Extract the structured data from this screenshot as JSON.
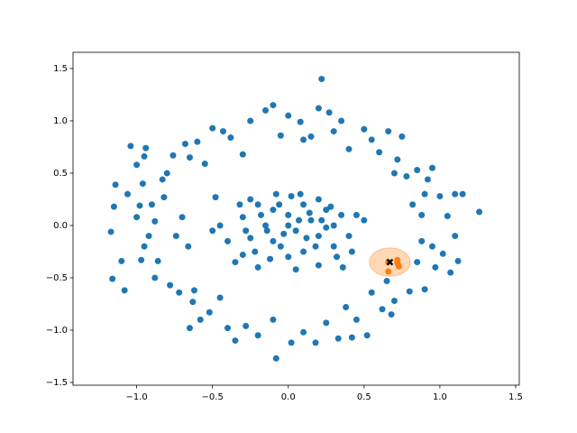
{
  "chart_data": {
    "type": "scatter",
    "xlim": [
      -1.42,
      1.524
    ],
    "ylim": [
      -1.526,
      1.655
    ],
    "xticks": [
      {
        "value": -1.0,
        "label": "−1.0"
      },
      {
        "value": -0.5,
        "label": "−0.5"
      },
      {
        "value": 0.0,
        "label": "0.0"
      },
      {
        "value": 0.5,
        "label": "0.5"
      },
      {
        "value": 1.0,
        "label": "1.0"
      },
      {
        "value": 1.5,
        "label": "1.5"
      }
    ],
    "yticks": [
      {
        "value": -1.5,
        "label": "−1.5"
      },
      {
        "value": -1.0,
        "label": "−1.0"
      },
      {
        "value": -0.5,
        "label": "−0.5"
      },
      {
        "value": 0.0,
        "label": "0.0"
      },
      {
        "value": 0.5,
        "label": "0.5"
      },
      {
        "value": 1.0,
        "label": "1.0"
      },
      {
        "value": 1.5,
        "label": "1.5"
      }
    ],
    "series": [
      {
        "color": "#1f77b4",
        "x": [
          -1.17,
          -1.14,
          -1.15,
          -1.16,
          -1.1,
          -1.08,
          -1.06,
          -1.04,
          -1.0,
          -1.0,
          -0.98,
          -0.97,
          -0.96,
          -0.95,
          -0.94,
          -0.92,
          -0.9,
          -0.88,
          -0.88,
          -0.86,
          -0.83,
          -0.82,
          -0.8,
          -0.78,
          -0.76,
          -0.74,
          -0.72,
          -0.7,
          -0.68,
          -0.66,
          -0.65,
          -0.63,
          -0.62,
          -0.6,
          -0.58,
          -0.55,
          -0.52,
          -0.5,
          -0.5,
          -0.48,
          -0.45,
          -0.43,
          -0.4,
          -0.38,
          -0.35,
          -0.3,
          -0.28,
          -0.25,
          -0.2,
          -0.15,
          -0.1,
          -0.05,
          -0.08,
          0.0,
          0.02,
          0.08,
          0.1,
          0.15,
          0.18,
          0.2,
          0.22,
          0.25,
          0.27,
          0.3,
          0.33,
          0.35,
          0.38,
          0.4,
          0.45,
          0.5,
          0.52,
          0.55,
          0.55,
          0.6,
          0.62,
          0.66,
          0.7,
          0.7,
          0.72,
          0.75,
          0.78,
          0.82,
          0.8,
          0.85,
          0.85,
          0.88,
          0.9,
          0.92,
          0.95,
          0.95,
          0.97,
          1.0,
          1.02,
          1.05,
          1.07,
          1.1,
          1.12,
          1.15,
          1.26,
          1.1,
          0.65,
          0.42,
          0.68,
          -0.95,
          -0.1,
          0.1,
          -0.65,
          0.9,
          0.88,
          -0.3,
          -0.25,
          -0.2,
          -0.15,
          -0.1,
          -0.05,
          0.0,
          0.05,
          0.1,
          0.15,
          0.2,
          0.25,
          0.3,
          -0.22,
          0.0,
          0.1,
          0.18,
          -0.12,
          0.02,
          -0.08,
          0.2,
          0.3,
          0.35,
          -0.28,
          -0.18,
          0.07,
          -0.03,
          0.12,
          -0.1,
          0.22,
          0.4,
          0.42,
          0.45,
          0.5,
          -0.32,
          -0.4,
          -0.45,
          -0.35,
          -0.2,
          0.05,
          0.2,
          0.32,
          -0.06,
          0.14,
          0.25,
          -0.25,
          0.0,
          0.08,
          0.28,
          -0.14,
          0.36,
          -0.3
        ],
        "y": [
          -0.06,
          0.39,
          0.18,
          -0.51,
          -0.34,
          -0.62,
          0.3,
          0.76,
          0.58,
          0.08,
          0.19,
          -0.33,
          0.4,
          -0.2,
          0.74,
          -0.1,
          0.2,
          0.04,
          -0.5,
          -0.34,
          0.44,
          0.27,
          0.5,
          -0.57,
          0.67,
          -0.1,
          -0.64,
          0.08,
          0.78,
          -0.2,
          0.65,
          -0.73,
          -0.62,
          0.8,
          -0.9,
          0.59,
          -0.83,
          -0.05,
          0.93,
          0.27,
          -0.69,
          0.9,
          -0.98,
          0.84,
          -1.1,
          0.68,
          -0.96,
          1.0,
          -1.05,
          1.1,
          -0.9,
          0.86,
          -1.27,
          1.05,
          -1.12,
          0.99,
          -1.02,
          0.85,
          -1.12,
          1.12,
          1.4,
          -0.93,
          1.08,
          0.9,
          -1.08,
          1.0,
          -0.78,
          0.73,
          -0.9,
          0.92,
          -1.05,
          0.82,
          -0.64,
          0.7,
          -0.8,
          0.9,
          0.5,
          -0.72,
          0.63,
          0.85,
          0.47,
          0.2,
          -0.63,
          0.53,
          -0.35,
          0.1,
          -0.61,
          0.44,
          -0.2,
          0.55,
          -0.4,
          0.28,
          -0.27,
          0.09,
          -0.45,
          0.3,
          -0.34,
          0.3,
          0.13,
          -0.1,
          -0.53,
          -1.07,
          -0.85,
          0.66,
          1.15,
          0.82,
          -0.98,
          0.3,
          -0.15,
          0.08,
          -0.12,
          0.2,
          0.0,
          0.15,
          -0.2,
          0.1,
          -0.05,
          0.2,
          0.05,
          -0.1,
          0.15,
          0.0,
          -0.25,
          -0.3,
          -0.25,
          -0.2,
          -0.32,
          0.28,
          0.3,
          0.25,
          -0.2,
          0.1,
          -0.05,
          0.1,
          0.05,
          -0.08,
          -0.12,
          -0.15,
          0.05,
          -0.1,
          -0.25,
          0.1,
          0.05,
          0.2,
          -0.15,
          0.0,
          -0.35,
          -0.4,
          -0.42,
          -0.38,
          -0.3,
          0.2,
          0.12,
          -0.02,
          0.25,
          0.0,
          0.3,
          0.18,
          -0.05,
          -0.4,
          -0.28
        ]
      },
      {
        "color": "#ff7f0e",
        "x": [
          0.66,
          0.72,
          0.73,
          0.72,
          0.66
        ],
        "y": [
          -0.35,
          -0.36,
          -0.39,
          -0.33,
          -0.44
        ]
      }
    ],
    "highlight": {
      "color": "#ff7f0e",
      "center": [
        0.67,
        -0.35
      ],
      "radius": 0.135
    },
    "marker": {
      "color": "#000000",
      "x": 0.67,
      "y": -0.35
    }
  }
}
